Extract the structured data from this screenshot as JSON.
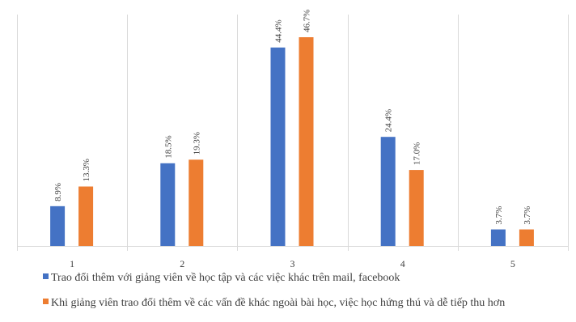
{
  "chart_data": {
    "type": "bar",
    "categories": [
      "1",
      "2",
      "3",
      "4",
      "5"
    ],
    "series": [
      {
        "name": "Trao đổi thêm với giảng viên về học tập và các việc khác trên mail, facebook",
        "values": [
          8.9,
          18.5,
          44.4,
          24.4,
          3.7
        ],
        "labels": [
          "8.9%",
          "18.5%",
          "44.4%",
          "24.4%",
          "3.7%"
        ],
        "color": "#4472C4"
      },
      {
        "name": "Khi giảng viên trao đổi thêm về các vấn đề khác ngoài bài học, việc học hứng thú và dễ tiếp thu hơn",
        "values": [
          13.3,
          19.3,
          46.7,
          17.0,
          3.7
        ],
        "labels": [
          "13.3%",
          "19.3%",
          "46.7%",
          "17.0%",
          "3.7%"
        ],
        "color": "#ED7D31"
      }
    ],
    "ylim": [
      0,
      50
    ],
    "grid": "vertical category separators",
    "legend": "bottom"
  }
}
